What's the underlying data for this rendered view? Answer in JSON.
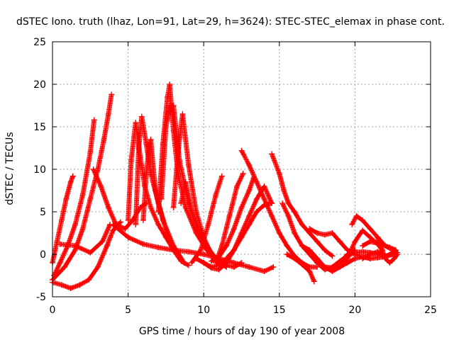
{
  "chart_data": {
    "type": "scatter",
    "title": "dSTEC Iono. truth (lhaz, Lon=91, Lat=29, h=3624): STEC-STEC_elemax in phase cont.",
    "xlabel": "GPS time / hours of day 190 of year 2008",
    "ylabel": "dSTEC  / TECUs",
    "xlim": [
      0,
      25
    ],
    "ylim": [
      -5,
      25
    ],
    "xticks": [
      0,
      5,
      10,
      15,
      20,
      25
    ],
    "yticks": [
      -5,
      0,
      5,
      10,
      15,
      20,
      25
    ],
    "grid": true,
    "legend": "none",
    "marker": "+",
    "color": "#ff0000",
    "series": [
      {
        "x": [
          0.0,
          0.3,
          0.6,
          0.9,
          1.2,
          1.35
        ],
        "y": [
          -1.0,
          1.5,
          4.0,
          6.5,
          8.5,
          9.2
        ]
      },
      {
        "x": [
          0.1,
          0.5,
          1.0,
          1.5,
          2.0,
          2.5,
          2.75
        ],
        "y": [
          -2.5,
          -1.0,
          1.0,
          3.5,
          7.0,
          12.0,
          15.8
        ]
      },
      {
        "x": [
          0.0,
          0.8,
          1.5,
          2.0,
          2.5,
          3.0,
          3.4,
          3.7,
          3.9
        ],
        "y": [
          -3.0,
          -1.5,
          0.5,
          3.0,
          6.5,
          10.0,
          13.5,
          16.5,
          18.8
        ]
      },
      {
        "x": [
          0.0,
          0.6,
          1.2,
          1.8,
          2.4,
          3.0,
          3.6,
          4.0,
          4.5
        ],
        "y": [
          -3.3,
          -3.6,
          -4.0,
          -3.6,
          -3.0,
          -1.5,
          1.0,
          2.8,
          3.8
        ]
      },
      {
        "x": [
          0.5,
          1.5,
          2.5,
          3.3,
          3.8
        ],
        "y": [
          1.2,
          1.0,
          0.2,
          1.5,
          3.5
        ]
      },
      {
        "x": [
          2.7,
          3.2,
          3.7,
          4.2,
          4.8,
          5.3,
          5.8,
          6.2
        ],
        "y": [
          10.0,
          8.0,
          5.5,
          3.5,
          3.0,
          4.0,
          5.5,
          6.0
        ]
      },
      {
        "x": [
          5.0,
          5.2,
          5.5,
          5.8,
          6.1,
          6.5,
          7.0,
          7.5,
          8.0,
          8.5,
          9.0
        ],
        "y": [
          4.0,
          11.0,
          15.5,
          11.5,
          8.0,
          5.5,
          3.5,
          2.0,
          0.5,
          -0.8,
          -1.3
        ]
      },
      {
        "x": [
          5.5,
          5.7,
          5.9,
          6.2,
          6.5,
          7.0,
          7.5,
          8.0
        ],
        "y": [
          3.5,
          12.5,
          16.2,
          13.0,
          9.5,
          6.0,
          3.0,
          0.5
        ]
      },
      {
        "x": [
          6.0,
          6.2,
          6.4,
          6.5,
          6.8,
          7.3,
          8.0,
          8.7
        ],
        "y": [
          4.0,
          9.5,
          12.8,
          13.5,
          7.5,
          4.0,
          1.0,
          -1.0
        ]
      },
      {
        "x": [
          7.0,
          7.3,
          7.6,
          7.75,
          8.0,
          8.3,
          8.8,
          9.5,
          10.2,
          11.0
        ],
        "y": [
          5.0,
          13.0,
          18.5,
          20.0,
          14.5,
          9.5,
          5.5,
          2.5,
          0.5,
          -1.0
        ]
      },
      {
        "x": [
          7.2,
          7.5,
          7.8,
          8.0,
          8.4,
          9.0,
          9.6,
          10.2,
          10.8
        ],
        "y": [
          6.5,
          15.0,
          17.5,
          17.5,
          11.0,
          6.0,
          3.0,
          1.0,
          -0.8
        ]
      },
      {
        "x": [
          8.0,
          8.3,
          8.6,
          9.0,
          9.5,
          10.0,
          10.5,
          11.0,
          11.5
        ],
        "y": [
          5.5,
          12.0,
          16.5,
          10.5,
          5.0,
          2.0,
          0.0,
          -1.0,
          -1.5
        ]
      },
      {
        "x": [
          8.5,
          8.8,
          9.2,
          9.6,
          10.2,
          10.8,
          11.4,
          12.0,
          12.5
        ],
        "y": [
          6.0,
          8.5,
          5.0,
          3.0,
          1.0,
          -0.5,
          -1.2,
          -1.5,
          -1.0
        ]
      },
      {
        "x": [
          4.0,
          5.0,
          6.0,
          7.0,
          8.0,
          9.0,
          10.0,
          11.0,
          12.0,
          13.0,
          14.0,
          14.6
        ],
        "y": [
          3.5,
          2.0,
          1.2,
          0.8,
          0.5,
          0.3,
          0.0,
          -0.5,
          -1.0,
          -1.5,
          -2.0,
          -1.5
        ]
      },
      {
        "x": [
          9.5,
          10.0,
          10.5,
          11.0,
          11.5,
          12.0,
          12.5,
          13.0,
          13.5,
          14.0,
          14.5
        ],
        "y": [
          -0.5,
          -1.0,
          -1.5,
          -1.3,
          -0.5,
          0.5,
          2.0,
          3.5,
          5.0,
          5.8,
          6.0
        ]
      },
      {
        "x": [
          9.2,
          9.8,
          10.3,
          10.8,
          11.2
        ],
        "y": [
          -1.0,
          0.5,
          3.5,
          7.0,
          9.2
        ]
      },
      {
        "x": [
          10.0,
          10.5,
          11.0,
          11.5,
          12.0,
          12.5,
          13.0,
          13.5,
          14.0,
          14.5
        ],
        "y": [
          -1.0,
          -1.6,
          -1.8,
          -1.0,
          0.5,
          2.5,
          4.5,
          6.5,
          8.0,
          6.0
        ]
      },
      {
        "x": [
          10.5,
          11.0,
          11.5,
          12.0,
          12.5,
          13.0,
          13.3
        ],
        "y": [
          -0.8,
          -0.3,
          1.0,
          3.0,
          5.5,
          7.5,
          9.0
        ]
      },
      {
        "x": [
          10.8,
          11.2,
          11.7,
          12.2,
          12.6
        ],
        "y": [
          -1.0,
          1.0,
          4.5,
          8.0,
          9.5
        ]
      },
      {
        "x": [
          12.5,
          13.0,
          13.5,
          14.0,
          14.5,
          15.0,
          15.5,
          16.0,
          16.5,
          17.0,
          17.5
        ],
        "y": [
          12.2,
          10.5,
          8.5,
          6.5,
          4.5,
          2.5,
          1.0,
          -0.2,
          -1.0,
          -1.5,
          -1.5
        ]
      },
      {
        "x": [
          14.5,
          15.0,
          15.3,
          15.6,
          16.0,
          16.5,
          17.0,
          17.5,
          18.0,
          18.5
        ],
        "y": [
          11.8,
          9.5,
          7.5,
          6.0,
          5.0,
          3.5,
          2.5,
          1.5,
          0.5,
          -0.2
        ]
      },
      {
        "x": [
          15.2,
          15.6,
          16.0,
          16.5,
          17.0,
          17.5,
          18.0,
          18.5,
          19.0,
          19.5,
          20.0
        ],
        "y": [
          6.0,
          4.5,
          2.5,
          1.0,
          0.0,
          -1.0,
          -1.5,
          -1.6,
          -1.0,
          0.0,
          0.5
        ]
      },
      {
        "x": [
          15.5,
          16.0,
          16.5,
          17.0,
          17.3
        ],
        "y": [
          0.0,
          -0.5,
          -1.2,
          -2.0,
          -3.2
        ]
      },
      {
        "x": [
          16.5,
          17.0,
          17.5,
          18.0,
          18.5,
          19.0,
          19.5,
          20.0,
          20.5,
          21.0
        ],
        "y": [
          1.0,
          0.5,
          -0.5,
          -1.5,
          -2.0,
          -1.5,
          -1.0,
          -0.5,
          -0.3,
          -0.5
        ]
      },
      {
        "x": [
          17.5,
          18.0,
          18.5,
          19.0,
          19.5,
          20.0,
          20.5,
          21.0,
          21.5,
          22.0,
          22.5
        ],
        "y": [
          -1.0,
          -1.8,
          -1.5,
          -0.8,
          -0.2,
          0.2,
          0.3,
          0.2,
          0.0,
          -0.3,
          0.0
        ]
      },
      {
        "x": [
          17.0,
          17.5,
          18.0,
          18.5,
          19.0,
          19.5,
          20.0,
          20.5,
          21.0,
          21.5,
          22.0,
          22.5,
          22.7
        ],
        "y": [
          3.0,
          2.5,
          2.3,
          2.5,
          1.5,
          0.5,
          0.0,
          -0.3,
          -0.5,
          -0.4,
          -0.3,
          0.2,
          0.3
        ]
      },
      {
        "x": [
          19.8,
          20.1,
          20.5,
          21.0,
          21.5,
          22.0,
          22.5,
          22.7
        ],
        "y": [
          3.5,
          4.5,
          4.0,
          3.0,
          2.0,
          1.0,
          0.5,
          0.3
        ]
      },
      {
        "x": [
          19.0,
          19.5,
          20.0,
          20.5,
          21.0,
          21.5,
          21.8
        ],
        "y": [
          -1.0,
          -0.5,
          1.5,
          2.8,
          2.0,
          1.2,
          0.5
        ]
      },
      {
        "x": [
          20.5,
          21.0,
          21.5,
          22.0,
          22.3,
          22.7
        ],
        "y": [
          1.0,
          1.5,
          1.3,
          1.0,
          0.8,
          0.5
        ]
      },
      {
        "x": [
          20.5,
          21.0,
          21.5,
          22.0,
          22.5,
          22.8
        ],
        "y": [
          -0.5,
          0.0,
          0.3,
          -0.2,
          0.0,
          0.2
        ]
      },
      {
        "x": [
          21.5,
          21.8,
          22.0,
          22.3,
          22.6,
          22.8
        ],
        "y": [
          2.0,
          0.5,
          -0.5,
          -1.0,
          -0.5,
          0.0
        ]
      }
    ]
  }
}
